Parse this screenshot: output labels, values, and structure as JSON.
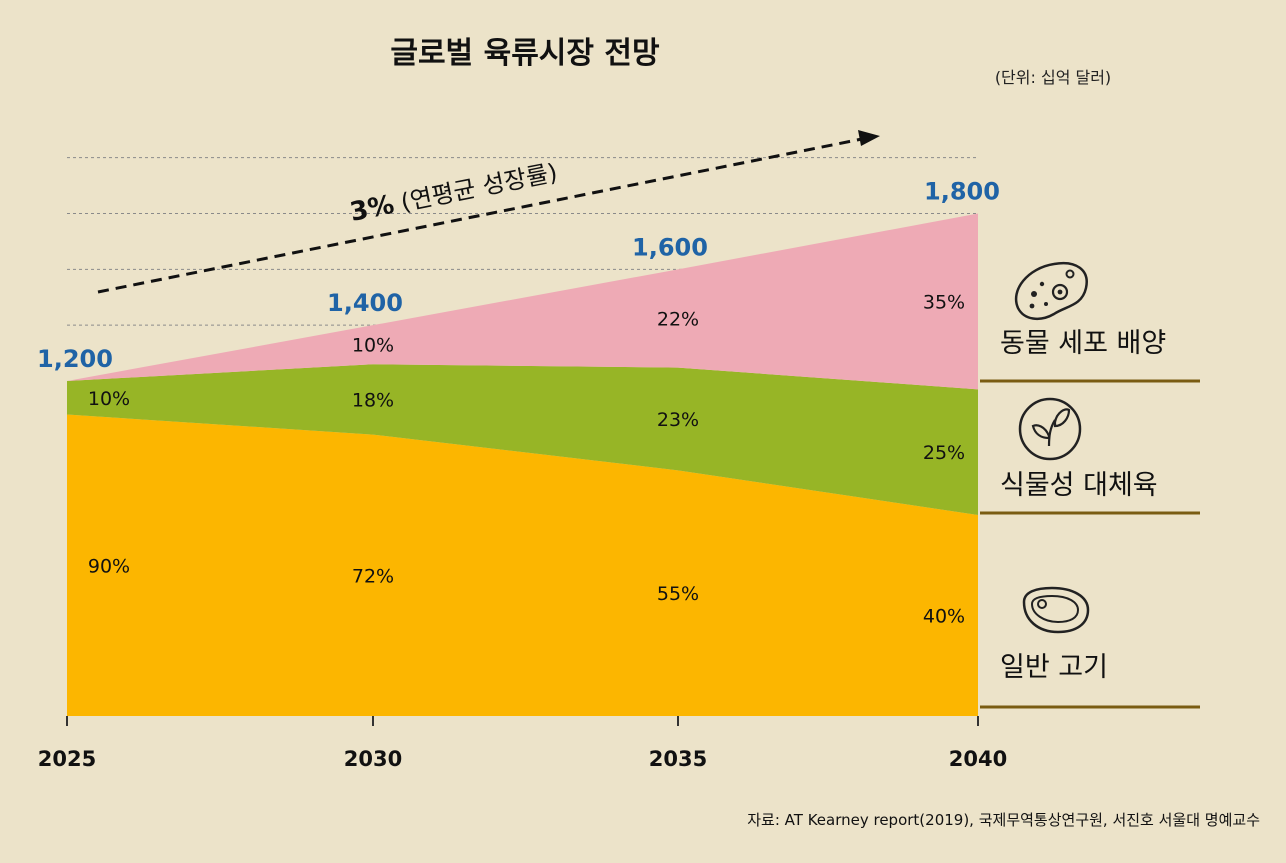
{
  "colors": {
    "background": "#ece3c9",
    "cell": "#eeaab5",
    "plant": "#97b526",
    "meat": "#fcb600",
    "total_label": "#1f63a6",
    "divider": "#7a5c12"
  },
  "icons": {
    "cell": "cell-culture-icon",
    "plant": "leaf-icon",
    "meat": "steak-icon"
  },
  "chart_data": {
    "type": "area",
    "title": "글로벌 육류시장 전망",
    "unit": "(단위: 십억 달러)",
    "growth_label_bold": "3%",
    "growth_label_rest": " (연평균 성장률)",
    "source": "자료: AT Kearney report(2019), 국제무역통상연구원, 서진호 서울대 명예교수",
    "x": [
      "2025",
      "2030",
      "2035",
      "2040"
    ],
    "totals": [
      1200,
      1400,
      1600,
      1800
    ],
    "total_labels": [
      "1,200",
      "1,400",
      "1,600",
      "1,800"
    ],
    "ylim": [
      0,
      2000
    ],
    "series": [
      {
        "key": "meat",
        "name": "일반 고기",
        "percent": [
          90,
          72,
          55,
          40
        ],
        "labels": [
          "90%",
          "72%",
          "55%",
          "40%"
        ]
      },
      {
        "key": "plant",
        "name": "식물성 대체육",
        "percent": [
          10,
          18,
          23,
          25
        ],
        "labels": [
          "10%",
          "18%",
          "23%",
          "25%"
        ]
      },
      {
        "key": "cell",
        "name": "동물 세포 배양",
        "percent": [
          0,
          10,
          22,
          35
        ],
        "labels": [
          "",
          "10%",
          "22%",
          "35%"
        ]
      }
    ]
  }
}
